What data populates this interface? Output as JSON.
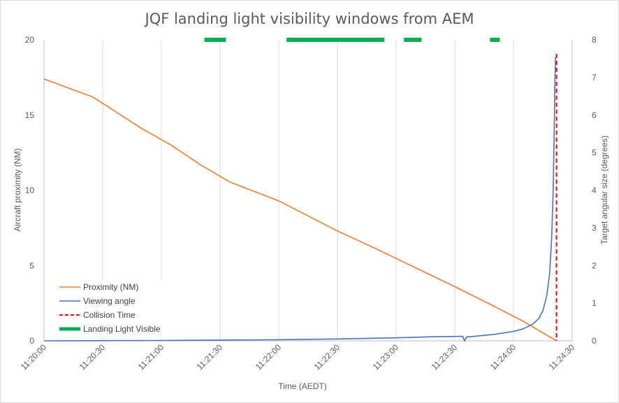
{
  "chart_data": {
    "type": "line",
    "title": "JQF landing light visibility windows from AEM",
    "xlabel": "Time (AEDT)",
    "ylabel_left": "Aircraft proximity (NM)",
    "ylabel_right": "Target angular size (degrees)",
    "x_ticks": [
      "11:20:00",
      "11:20:30",
      "11:21:00",
      "11:21:30",
      "11:22:00",
      "11:22:30",
      "11:23:00",
      "11:23:30",
      "11:24:00",
      "11:24:30"
    ],
    "x_tick_seconds": [
      0,
      30,
      60,
      90,
      120,
      150,
      180,
      210,
      240,
      270
    ],
    "xlim_seconds": [
      0,
      270
    ],
    "y_left_ticks": [
      "0",
      "5",
      "10",
      "15",
      "20"
    ],
    "y_left_lim": [
      0,
      20
    ],
    "y_right_ticks": [
      "0",
      "1",
      "2",
      "3",
      "4",
      "5",
      "6",
      "7",
      "8"
    ],
    "y_right_lim": [
      0,
      8
    ],
    "grid": "vertical",
    "legend_position": "bottom-left",
    "series": [
      {
        "name": "Proximity (NM)",
        "axis": "left",
        "color": "#ED7D31",
        "points": [
          [
            0,
            17.4
          ],
          [
            25,
            16.2
          ],
          [
            50,
            14.1
          ],
          [
            65,
            13.0
          ],
          [
            80,
            11.7
          ],
          [
            95,
            10.55
          ],
          [
            120,
            9.3
          ],
          [
            150,
            7.3
          ],
          [
            170,
            6.1
          ],
          [
            190,
            4.85
          ],
          [
            210,
            3.6
          ],
          [
            230,
            2.3
          ],
          [
            245,
            1.3
          ],
          [
            262,
            0
          ]
        ]
      },
      {
        "name": "Viewing angle",
        "axis": "right",
        "color": "#4472C4",
        "points": [
          [
            0,
            0.0
          ],
          [
            60,
            0.01
          ],
          [
            90,
            0.02
          ],
          [
            120,
            0.03
          ],
          [
            150,
            0.05
          ],
          [
            180,
            0.08
          ],
          [
            200,
            0.11
          ],
          [
            214,
            0.12
          ],
          [
            215,
            0.0
          ],
          [
            216,
            0.1
          ],
          [
            230,
            0.17
          ],
          [
            240,
            0.25
          ],
          [
            245,
            0.32
          ],
          [
            250,
            0.45
          ],
          [
            253,
            0.6
          ],
          [
            255,
            0.8
          ],
          [
            257,
            1.2
          ],
          [
            258.5,
            1.8
          ],
          [
            259.5,
            2.7
          ],
          [
            260.3,
            4.0
          ],
          [
            260.8,
            5.5
          ],
          [
            261.2,
            7.0
          ],
          [
            261.5,
            7.55
          ]
        ]
      }
    ],
    "collision_time": {
      "name": "Collision Time",
      "color": "#FF0000",
      "x": 262
    },
    "landing_light_visible": {
      "name": "Landing Light Visible",
      "color": "#00B050",
      "y_right": 8,
      "intervals": [
        [
          82,
          93
        ],
        [
          124,
          174
        ],
        [
          184,
          193
        ],
        [
          228,
          233
        ]
      ]
    },
    "legend": [
      "Proximity (NM)",
      "Viewing angle",
      "Collision Time",
      "Landing Light Visible"
    ]
  }
}
